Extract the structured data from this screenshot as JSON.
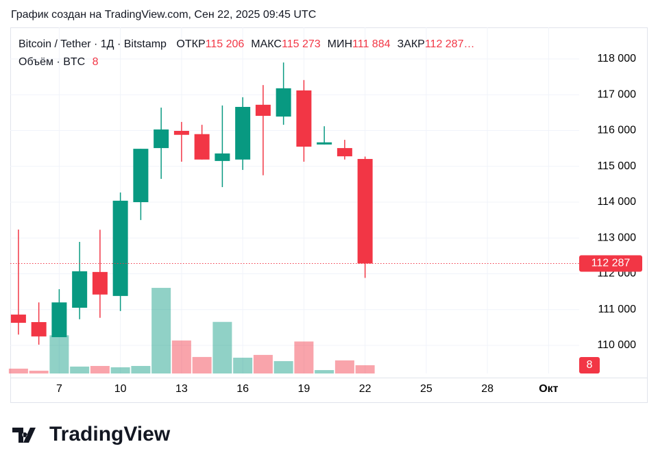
{
  "chart_data": {
    "type": "candlestick",
    "title": "График создан на TradingView.com, Сен 22, 2025 09:45 UTC",
    "brand": "TradingView",
    "symbol": "Bitcoin / Tether · 1Д · Bitstamp",
    "ohlc_legend": [
      {
        "name": "ОТКР",
        "label": "115 206"
      },
      {
        "name": "МАКС",
        "label": "115 273"
      },
      {
        "name": "МИН",
        "label": "111 884"
      },
      {
        "name": "ЗАКР",
        "label": "112 287…"
      }
    ],
    "x": [
      5,
      6,
      7,
      8,
      9,
      10,
      11,
      12,
      13,
      14,
      15,
      16,
      17,
      18,
      19,
      20,
      21,
      22
    ],
    "open": [
      110860,
      110650,
      110230,
      111050,
      112050,
      111380,
      114000,
      115510,
      115990,
      115900,
      115150,
      115190,
      116720,
      116390,
      117120,
      115610,
      115510,
      115206
    ],
    "high": [
      113235,
      111200,
      111570,
      112890,
      113230,
      114270,
      115490,
      116640,
      116240,
      116160,
      116700,
      116930,
      117270,
      117900,
      117410,
      116120,
      115740,
      115273
    ],
    "low": [
      110300,
      110020,
      110230,
      110730,
      110770,
      110960,
      113500,
      114650,
      115130,
      115190,
      114420,
      114900,
      114750,
      116160,
      115130,
      115610,
      115190,
      111884
    ],
    "close": [
      110630,
      110250,
      111200,
      112070,
      111420,
      114040,
      115490,
      116030,
      115880,
      115190,
      115360,
      116660,
      116410,
      117180,
      115550,
      115670,
      115280,
      112287
    ],
    "up_color": "#089981",
    "down_color": "#f23645",
    "xlim": [
      4.6,
      32.5
    ],
    "xticks": [
      7,
      10,
      13,
      16,
      19,
      22,
      25,
      28,
      {
        "value": 31,
        "label": "Окт"
      }
    ],
    "ylim": [
      109215,
      118880
    ],
    "yticks": [
      {
        "value": 110000,
        "label": "110 000"
      },
      {
        "value": 111000,
        "label": "111 000"
      },
      {
        "value": 112000,
        "label": "112 000"
      },
      {
        "value": 113000,
        "label": "113 000"
      },
      {
        "value": 114000,
        "label": "114 000"
      },
      {
        "value": 115000,
        "label": "115 000"
      },
      {
        "value": 116000,
        "label": "116 000"
      },
      {
        "value": 117000,
        "label": "117 000"
      },
      {
        "value": 118000,
        "label": "118 000"
      }
    ],
    "grid": true,
    "price_label": {
      "value": 112287,
      "label": "112 287"
    },
    "volume": {
      "name": "Объём · BTC",
      "vlim": [
        0,
        93
      ],
      "values": [
        4.7,
        2.7,
        37,
        6.7,
        7.3,
        6,
        7.3,
        83,
        32,
        16,
        50,
        15.3,
        18,
        12,
        31,
        3.3,
        12.7,
        8
      ]
    }
  }
}
